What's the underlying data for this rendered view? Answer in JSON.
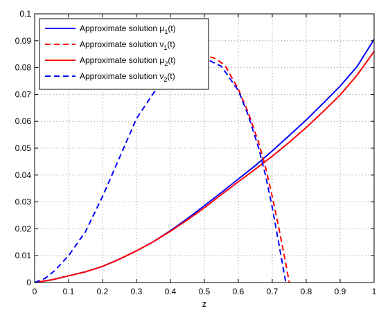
{
  "chart_data": {
    "type": "line",
    "xlabel": "z",
    "ylabel": "",
    "xlim": [
      0,
      1
    ],
    "ylim": [
      0,
      0.1
    ],
    "x_ticks": [
      "0",
      "0.1",
      "0.2",
      "0.3",
      "0.4",
      "0.5",
      "0.6",
      "0.7",
      "0.8",
      "0.9",
      "1"
    ],
    "y_ticks": [
      "0",
      "0.01",
      "0.02",
      "0.03",
      "0.04",
      "0.05",
      "0.06",
      "0.07",
      "0.08",
      "0.09",
      "0.1"
    ],
    "grid": true,
    "legend_position": "top-left",
    "series": [
      {
        "label_main": "Approximate solution μ",
        "label_sub": "1",
        "label_tail": "(t)",
        "color": "#0000ff",
        "dashed": false,
        "x": [
          0,
          0.05,
          0.1,
          0.15,
          0.2,
          0.25,
          0.3,
          0.35,
          0.4,
          0.45,
          0.5,
          0.55,
          0.6,
          0.65,
          0.7,
          0.75,
          0.8,
          0.85,
          0.9,
          0.95,
          1.0
        ],
        "y": [
          0,
          0.001,
          0.0025,
          0.004,
          0.006,
          0.0087,
          0.0118,
          0.0152,
          0.0193,
          0.0238,
          0.0286,
          0.0335,
          0.0385,
          0.0435,
          0.049,
          0.0547,
          0.0605,
          0.0667,
          0.0731,
          0.0804,
          0.0905
        ]
      },
      {
        "label_main": "Approximate solution ν",
        "label_sub": "1",
        "label_tail": "(t)",
        "color": "#ff0000",
        "dashed": true,
        "x": [
          0.4,
          0.45,
          0.5,
          0.53,
          0.56,
          0.6,
          0.63,
          0.66,
          0.68,
          0.7,
          0.72,
          0.74,
          0.75
        ],
        "y": [
          0.0775,
          0.082,
          0.0845,
          0.0835,
          0.081,
          0.072,
          0.063,
          0.052,
          0.043,
          0.032,
          0.02,
          0.007,
          0.0
        ]
      },
      {
        "label_main": "Approximate solution μ",
        "label_sub": "2",
        "label_tail": "(t)",
        "color": "#ff0000",
        "dashed": false,
        "x": [
          0,
          0.05,
          0.1,
          0.15,
          0.2,
          0.25,
          0.3,
          0.35,
          0.4,
          0.45,
          0.5,
          0.55,
          0.6,
          0.65,
          0.7,
          0.75,
          0.8,
          0.85,
          0.9,
          0.95,
          1.0
        ],
        "y": [
          0,
          0.001,
          0.0025,
          0.004,
          0.006,
          0.0087,
          0.0118,
          0.0152,
          0.0191,
          0.0233,
          0.0278,
          0.0327,
          0.0375,
          0.0422,
          0.047,
          0.0522,
          0.0577,
          0.0636,
          0.0698,
          0.0772,
          0.086
        ]
      },
      {
        "label_main": "Approximate solution ν",
        "label_sub": "2",
        "label_tail": "(t)",
        "color": "#0000ff",
        "dashed": true,
        "x": [
          0,
          0.03,
          0.06,
          0.1,
          0.15,
          0.2,
          0.25,
          0.3,
          0.35,
          0.4,
          0.45,
          0.5,
          0.55,
          0.6,
          0.63,
          0.66,
          0.68,
          0.7,
          0.72,
          0.74
        ],
        "y": [
          0,
          0.0015,
          0.0045,
          0.01,
          0.019,
          0.032,
          0.0465,
          0.061,
          0.0705,
          0.0775,
          0.0815,
          0.0835,
          0.0805,
          0.0715,
          0.062,
          0.05,
          0.04,
          0.028,
          0.014,
          0.0
        ]
      }
    ]
  },
  "colors": {
    "axis": "#000000",
    "grid": "#999999"
  }
}
